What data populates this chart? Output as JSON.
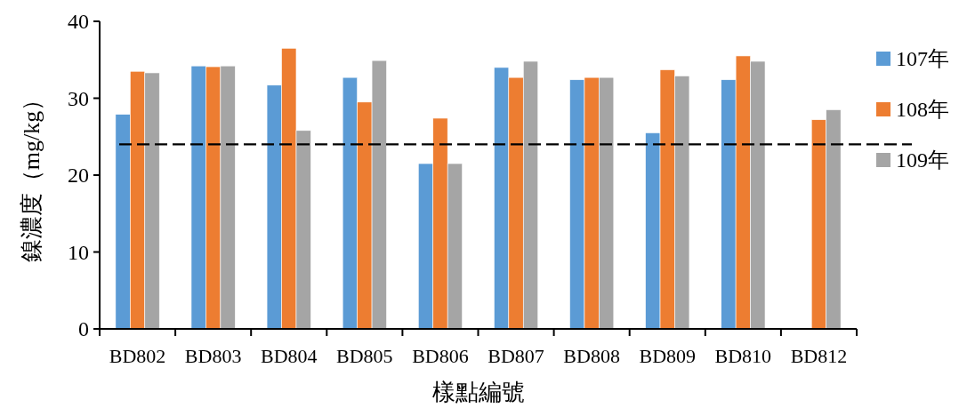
{
  "chart_data": {
    "type": "bar",
    "xlabel": "樣點編號",
    "ylabel": "鎳濃度（mg/kg）",
    "categories": [
      "BD802",
      "BD803",
      "BD804",
      "BD805",
      "BD806",
      "BD807",
      "BD808",
      "BD809",
      "BD810",
      "BD812"
    ],
    "series": [
      {
        "name": "107年",
        "color": "#5b9bd5",
        "values": [
          27.9,
          34.2,
          31.7,
          32.7,
          21.5,
          34.0,
          32.4,
          25.5,
          32.4,
          null
        ]
      },
      {
        "name": "108年",
        "color": "#ed7d31",
        "values": [
          33.5,
          34.1,
          36.5,
          29.5,
          27.4,
          32.7,
          32.7,
          33.7,
          35.5,
          27.2
        ]
      },
      {
        "name": "109年",
        "color": "#a5a5a5",
        "values": [
          33.3,
          34.2,
          25.8,
          34.9,
          21.5,
          34.8,
          32.7,
          32.9,
          34.8,
          28.5
        ]
      }
    ],
    "ylim": [
      0,
      40
    ],
    "yticks": [
      0,
      10,
      20,
      30,
      40
    ],
    "ref_lines": [
      {
        "axis": "y",
        "value": 24,
        "color": "#000000",
        "line_style": "dashed"
      }
    ],
    "legend": "right",
    "grid": false
  }
}
